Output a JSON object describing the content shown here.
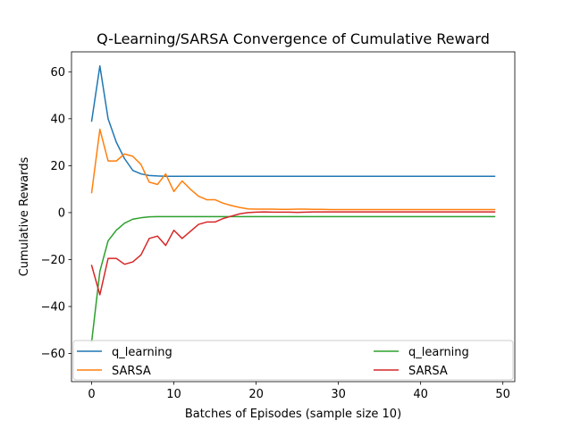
{
  "chart_data": {
    "type": "line",
    "title": "Q-Learning/SARSA Convergence of Cumulative Reward",
    "xlabel": "Batches of Episodes (sample size 10)",
    "ylabel": "Cumulative Rewards",
    "xlim": [
      -2.45,
      51.45
    ],
    "ylim": [
      -72,
      68.5
    ],
    "xticks": [
      0,
      10,
      20,
      30,
      40,
      50
    ],
    "yticks": [
      -60,
      -40,
      -20,
      0,
      20,
      40,
      60
    ],
    "grid": false,
    "legend_placement": "lower center, two columns, spanning axes width",
    "x": [
      0,
      1,
      2,
      3,
      4,
      5,
      6,
      7,
      8,
      9,
      10,
      11,
      12,
      13,
      14,
      15,
      16,
      17,
      18,
      19,
      20,
      21,
      22,
      23,
      24,
      25,
      26,
      27,
      28,
      29,
      30,
      31,
      32,
      33,
      34,
      35,
      36,
      37,
      38,
      39,
      40,
      41,
      42,
      43,
      44,
      45,
      46,
      47,
      48,
      49
    ],
    "series": [
      {
        "name": "q_learning",
        "color": "#1f77b4",
        "values": [
          39,
          62.5,
          40,
          30,
          23,
          18,
          16.5,
          15.8,
          15.6,
          15.5,
          15.5,
          15.5,
          15.5,
          15.5,
          15.5,
          15.5,
          15.5,
          15.5,
          15.5,
          15.5,
          15.5,
          15.5,
          15.5,
          15.5,
          15.5,
          15.5,
          15.5,
          15.5,
          15.5,
          15.5,
          15.5,
          15.5,
          15.5,
          15.5,
          15.5,
          15.5,
          15.5,
          15.5,
          15.5,
          15.5,
          15.5,
          15.5,
          15.5,
          15.5,
          15.5,
          15.5,
          15.5,
          15.5,
          15.5,
          15.5
        ]
      },
      {
        "name": "SARSA",
        "color": "#ff7f0e",
        "values": [
          8.5,
          35.5,
          22,
          22,
          25,
          24,
          20.5,
          13,
          12,
          16.5,
          9,
          13.5,
          10,
          7,
          5.5,
          5.5,
          4,
          3,
          2.2,
          1.6,
          1.5,
          1.5,
          1.5,
          1.4,
          1.4,
          1.5,
          1.5,
          1.4,
          1.4,
          1.3,
          1.3,
          1.3,
          1.3,
          1.3,
          1.3,
          1.3,
          1.3,
          1.3,
          1.3,
          1.3,
          1.3,
          1.3,
          1.3,
          1.3,
          1.3,
          1.3,
          1.3,
          1.3,
          1.3,
          1.3
        ]
      },
      {
        "name": "q_learning",
        "color": "#2ca02c",
        "values": [
          -55,
          -25,
          -12,
          -7.5,
          -4.5,
          -2.8,
          -2.2,
          -1.8,
          -1.7,
          -1.7,
          -1.7,
          -1.7,
          -1.7,
          -1.7,
          -1.7,
          -1.7,
          -1.7,
          -1.7,
          -1.7,
          -1.7,
          -1.7,
          -1.7,
          -1.7,
          -1.7,
          -1.7,
          -1.7,
          -1.7,
          -1.7,
          -1.7,
          -1.7,
          -1.7,
          -1.7,
          -1.7,
          -1.7,
          -1.7,
          -1.7,
          -1.7,
          -1.7,
          -1.7,
          -1.7,
          -1.7,
          -1.7,
          -1.7,
          -1.7,
          -1.7,
          -1.7,
          -1.7,
          -1.7,
          -1.7,
          -1.7
        ]
      },
      {
        "name": "SARSA",
        "color": "#d62728",
        "values": [
          -22.5,
          -35,
          -19.5,
          -19.5,
          -22,
          -21,
          -18,
          -11,
          -10,
          -14,
          -7.5,
          -11,
          -8,
          -5,
          -4,
          -4,
          -2.5,
          -1.5,
          -0.5,
          0,
          0.2,
          0.3,
          0.2,
          0.2,
          0.2,
          0.1,
          0.2,
          0.3,
          0.3,
          0.3,
          0.3,
          0.3,
          0.3,
          0.3,
          0.3,
          0.3,
          0.3,
          0.3,
          0.3,
          0.3,
          0.3,
          0.3,
          0.3,
          0.3,
          0.3,
          0.3,
          0.3,
          0.3,
          0.3,
          0.3
        ]
      }
    ]
  }
}
